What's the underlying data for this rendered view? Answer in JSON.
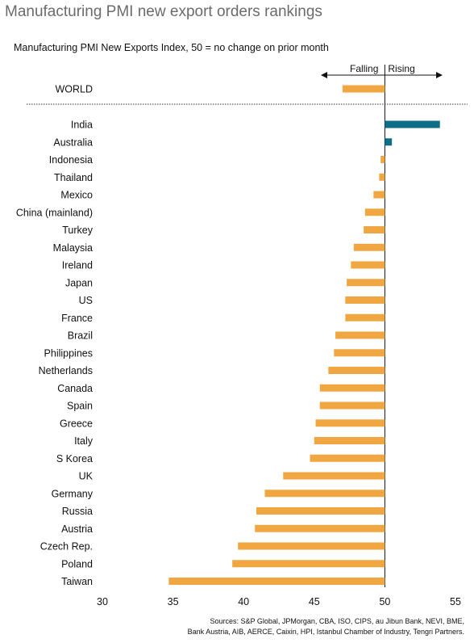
{
  "chart_data": {
    "type": "bar",
    "orientation": "horizontal",
    "title": "Manufacturing PMI new export orders rankings",
    "subtitle": "Manufacturing PMI New Exports Index, 50 = no change on prior month",
    "baseline": 50,
    "xlim": [
      30,
      55
    ],
    "xticks": [
      30,
      35,
      40,
      45,
      50,
      55
    ],
    "direction_labels": {
      "falling": "Falling",
      "rising": "Rising"
    },
    "world": {
      "category": "WORLD",
      "value": 47.0
    },
    "categories": [
      "India",
      "Australia",
      "Indonesia",
      "Thailand",
      "Mexico",
      "China (mainland)",
      "Turkey",
      "Malaysia",
      "Ireland",
      "Japan",
      "US",
      "France",
      "Brazil",
      "Philippines",
      "Netherlands",
      "Canada",
      "Spain",
      "Greece",
      "Italy",
      "S Korea",
      "UK",
      "Germany",
      "Russia",
      "Austria",
      "Czech Rep.",
      "Poland",
      "Taiwan"
    ],
    "values": [
      53.9,
      50.5,
      49.7,
      49.6,
      49.2,
      48.6,
      48.5,
      47.8,
      47.6,
      47.3,
      47.2,
      47.2,
      46.5,
      46.4,
      46.0,
      45.4,
      45.4,
      45.1,
      45.0,
      44.7,
      42.8,
      41.5,
      40.9,
      40.8,
      39.6,
      39.2,
      34.7
    ],
    "colors": {
      "falling": "#f0a742",
      "rising": "#0f6e87"
    }
  },
  "sources": [
    "Sources: S&P Global, JPMorgan, CBA, ISO, CIPS, au Jibun Bank, NEVI, BME,",
    "Bank Austria, AIB, AERCE, Caixin, HPI, Istanbul Chamber of Industry, Tengri Partners."
  ]
}
